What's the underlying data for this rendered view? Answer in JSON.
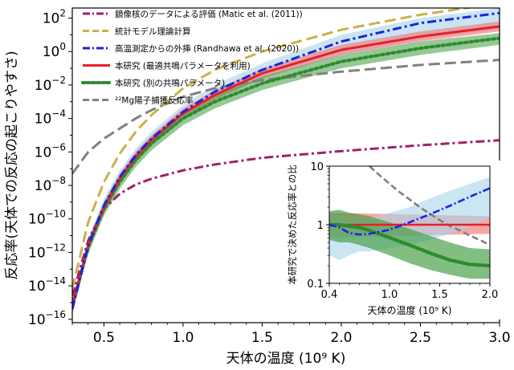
{
  "chart_data": [
    {
      "type": "line",
      "title": "",
      "xlabel": "天体の温度",
      "xlabel_unit": "(10⁹ K)",
      "ylabel": "反応率(天体での反応の起こりやすさ)",
      "xlim": [
        0.3,
        3.0
      ],
      "ylog": true,
      "ylim_exp": [
        -16,
        3
      ],
      "xticks": [
        "0.5",
        "1.0",
        "1.5",
        "2.0",
        "2.5",
        "3.0"
      ],
      "xtick_values": [
        0.5,
        1.0,
        1.5,
        2.0,
        2.5,
        3.0
      ],
      "ytick_exp": [
        -16,
        -14,
        -12,
        -10,
        -8,
        -6,
        -4,
        -2,
        0,
        2
      ],
      "legend_position": "top-left",
      "series": [
        {
          "name": "鏡像核のデータによる評価 (Matic et al. (2011))",
          "color": "#a0206a",
          "style": "dashdot",
          "x": [
            0.3,
            0.4,
            0.5,
            0.6,
            0.7,
            0.8,
            1.0,
            1.2,
            1.5,
            2.0,
            2.5,
            3.0
          ],
          "log_values": [
            -14.6,
            -11.3,
            -9.4,
            -8.5,
            -7.95,
            -7.6,
            -7.1,
            -6.75,
            -6.35,
            -5.95,
            -5.6,
            -5.3
          ]
        },
        {
          "name": "統計モデル理論計算",
          "color": "#c8b24a",
          "style": "dashed",
          "x": [
            0.3,
            0.4,
            0.5,
            0.6,
            0.7,
            0.8,
            1.0,
            1.2,
            1.5,
            2.0,
            2.5,
            3.0
          ],
          "log_values": [
            -14.2,
            -10.2,
            -7.8,
            -6.1,
            -4.8,
            -3.8,
            -2.2,
            -1.1,
            0.0,
            1.3,
            2.2,
            2.9
          ]
        },
        {
          "name": "高温測定からの外挿 (Randhawa et al. (2020))",
          "color": "#1a24e6",
          "style": "dashdot",
          "x": [
            0.3,
            0.4,
            0.5,
            0.6,
            0.7,
            0.8,
            1.0,
            1.2,
            1.5,
            2.0,
            2.5,
            3.0
          ],
          "log_values": [
            -15.4,
            -11.6,
            -9.2,
            -7.5,
            -6.2,
            -5.2,
            -3.6,
            -2.4,
            -1.1,
            0.6,
            1.7,
            2.3
          ],
          "band_low": [
            -15.8,
            -12.0,
            -9.6,
            -7.9,
            -6.6,
            -5.6,
            -4.0,
            -2.8,
            -1.6,
            -0.2,
            0.7,
            1.3
          ],
          "band_high": [
            -15.0,
            -11.2,
            -8.8,
            -7.1,
            -5.8,
            -4.8,
            -3.2,
            -2.0,
            -0.7,
            1.0,
            2.0,
            2.6
          ]
        },
        {
          "name": "本研究 (最適共鳴パラメータを利用)",
          "color": "#e81f26",
          "style": "solid",
          "x": [
            0.3,
            0.4,
            0.5,
            0.6,
            0.7,
            0.8,
            1.0,
            1.2,
            1.5,
            2.0,
            2.5,
            3.0
          ],
          "log_values": [
            -15.2,
            -11.6,
            -9.3,
            -7.6,
            -6.3,
            -5.3,
            -3.7,
            -2.6,
            -1.3,
            0.1,
            0.9,
            1.5
          ],
          "band_low": [
            -15.5,
            -11.9,
            -9.6,
            -7.9,
            -6.6,
            -5.6,
            -4.0,
            -2.9,
            -1.6,
            -0.2,
            0.6,
            1.2
          ],
          "band_high": [
            -14.9,
            -11.3,
            -9.0,
            -7.3,
            -6.0,
            -5.0,
            -3.4,
            -2.3,
            -1.0,
            0.4,
            1.2,
            1.8
          ]
        },
        {
          "name": "本研究 (別の共鳴パラメータ)",
          "color": "#2e8b2e",
          "style": "dotted",
          "x": [
            0.3,
            0.4,
            0.5,
            0.6,
            0.7,
            0.8,
            1.0,
            1.2,
            1.5,
            2.0,
            2.5,
            3.0
          ],
          "log_values": [
            -15.2,
            -11.7,
            -9.4,
            -7.8,
            -6.5,
            -5.5,
            -4.0,
            -3.0,
            -1.9,
            -0.6,
            0.2,
            0.8
          ],
          "band_low": [
            -15.6,
            -12.1,
            -9.8,
            -8.2,
            -6.9,
            -5.9,
            -4.4,
            -3.4,
            -2.3,
            -1.0,
            -0.2,
            0.4
          ],
          "band_high": [
            -14.8,
            -11.3,
            -9.0,
            -7.4,
            -6.1,
            -5.1,
            -3.6,
            -2.6,
            -1.5,
            -0.2,
            0.6,
            1.1
          ]
        },
        {
          "name": "²²Mg陽子捕獲反応率",
          "color": "#808080",
          "style": "dashed",
          "x": [
            0.3,
            0.4,
            0.5,
            0.6,
            0.7,
            0.8,
            1.0,
            1.2,
            1.5,
            2.0,
            2.5,
            3.0
          ],
          "log_values": [
            -7.3,
            -6.0,
            -5.2,
            -4.6,
            -4.0,
            -3.5,
            -2.7,
            -2.2,
            -1.7,
            -1.2,
            -0.8,
            -0.5
          ]
        }
      ]
    },
    {
      "type": "line",
      "title": "",
      "xlabel": "天体の温度",
      "xlabel_unit": "(10⁹ K)",
      "ylabel": "本研究で決めた反応率との比",
      "xlim": [
        0.4,
        2.0
      ],
      "ylog": true,
      "ylim": [
        0.1,
        10
      ],
      "xticks": [
        "0.4",
        "1.0",
        "1.5",
        "2.0"
      ],
      "xtick_values": [
        0.4,
        1.0,
        1.5,
        2.0
      ],
      "yticks": [
        "0.1",
        "1",
        "10"
      ],
      "ytick_values": [
        0.1,
        1,
        10
      ],
      "series": [
        {
          "name": "本研究 (最適共鳴パラメータを利用)",
          "color": "#e81f26",
          "style": "solid",
          "x": [
            0.4,
            2.0
          ],
          "values": [
            1.0,
            1.0
          ],
          "band_low": [
            0.6,
            0.7
          ],
          "band_high": [
            1.6,
            1.4
          ]
        },
        {
          "name": "高温測定からの外挿 (Randhawa et al. (2020))",
          "color": "#1a24e6",
          "style": "dashdot",
          "x": [
            0.4,
            0.5,
            0.6,
            0.7,
            0.8,
            1.0,
            1.2,
            1.4,
            1.6,
            1.8,
            2.0
          ],
          "values": [
            1.0,
            0.9,
            0.72,
            0.68,
            0.7,
            0.82,
            1.1,
            1.5,
            2.1,
            3.0,
            4.2
          ],
          "band_low": [
            0.3,
            0.25,
            0.3,
            0.35,
            0.35,
            0.4,
            0.45,
            0.55,
            0.7,
            0.95,
            1.3
          ],
          "band_high": [
            1.5,
            1.4,
            1.2,
            1.2,
            1.3,
            1.6,
            2.0,
            2.8,
            3.8,
            5.0,
            6.5
          ]
        },
        {
          "name": "本研究 (別の共鳴パラメータ)",
          "color": "#2e8b2e",
          "style": "dotted",
          "x": [
            0.4,
            0.5,
            0.6,
            0.7,
            0.8,
            1.0,
            1.2,
            1.4,
            1.6,
            1.8,
            2.0
          ],
          "values": [
            1.0,
            1.0,
            0.95,
            0.9,
            0.8,
            0.6,
            0.45,
            0.33,
            0.25,
            0.21,
            0.2
          ],
          "band_low": [
            0.55,
            0.5,
            0.5,
            0.45,
            0.4,
            0.3,
            0.22,
            0.17,
            0.14,
            0.12,
            0.12
          ],
          "band_high": [
            1.7,
            1.8,
            1.6,
            1.5,
            1.4,
            1.1,
            0.85,
            0.65,
            0.5,
            0.4,
            0.38
          ]
        },
        {
          "name": "²²Mg陽子捕獲反応率",
          "color": "#808080",
          "style": "dashed",
          "x": [
            0.8,
            0.9,
            1.0,
            1.1,
            1.2,
            1.3,
            1.4,
            1.5,
            1.6,
            1.7,
            1.8,
            1.9,
            2.0
          ],
          "values": [
            10,
            7,
            5.0,
            3.6,
            2.7,
            2.0,
            1.55,
            1.2,
            0.95,
            0.8,
            0.65,
            0.55,
            0.45
          ]
        }
      ]
    }
  ]
}
